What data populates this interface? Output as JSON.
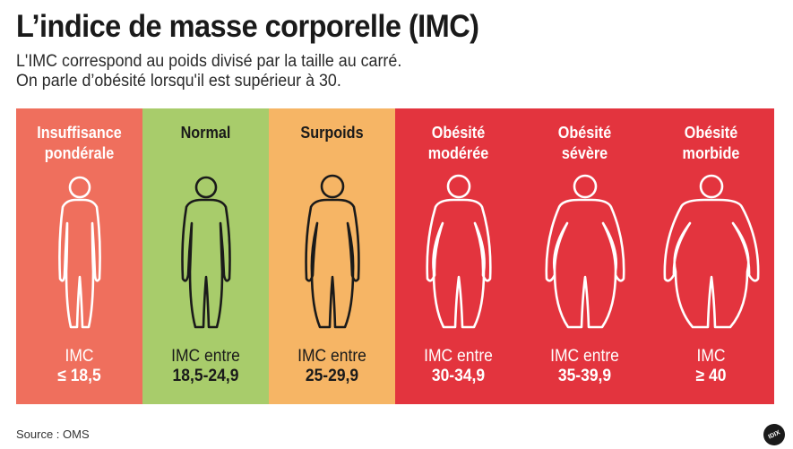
{
  "title": "L’indice de masse corporelle (IMC)",
  "subtitle": {
    "line1": "L'IMC correspond au poids divisé par la taille au carré.",
    "line2": "On parle d’obésité lorsqu'il est supérieur à 30."
  },
  "categories": [
    {
      "name_line1": "Insuffisance",
      "name_line2": "pondérale",
      "range_label": "IMC",
      "range_value": "≤ 18,5",
      "bg": "#ef6f5d",
      "text": "light",
      "body": "thin"
    },
    {
      "name_line1": "Normal",
      "name_line2": "",
      "range_label": "IMC entre",
      "range_value": "18,5-24,9",
      "bg": "#a8cc6b",
      "text": "dark",
      "body": "normal"
    },
    {
      "name_line1": "Surpoids",
      "name_line2": "",
      "range_label": "IMC entre",
      "range_value": "25-29,9",
      "bg": "#f6b565",
      "text": "dark",
      "body": "overweight"
    },
    {
      "name_line1": "Obésité",
      "name_line2": "modérée",
      "range_label": "IMC entre",
      "range_value": "30-34,9",
      "bg": "#e3343e",
      "text": "light",
      "body": "obese1"
    },
    {
      "name_line1": "Obésité",
      "name_line2": "sévère",
      "range_label": "IMC entre",
      "range_value": "35-39,9",
      "bg": "#e3343e",
      "text": "light",
      "body": "obese2"
    },
    {
      "name_line1": "Obésité",
      "name_line2": "morbide",
      "range_label": "IMC",
      "range_value": "≥ 40",
      "bg": "#e3343e",
      "text": "light",
      "body": "obese3"
    }
  ],
  "source": "Source : OMS",
  "logo": "IDIX",
  "colors": {
    "outline_light": "#ffffff",
    "outline_dark": "#1a1a1a"
  }
}
